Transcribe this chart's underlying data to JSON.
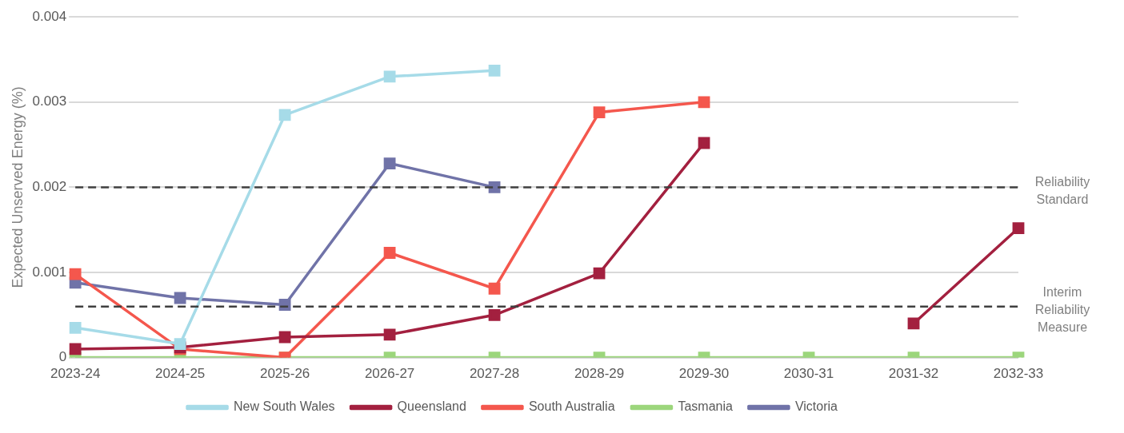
{
  "chart_data": {
    "type": "line",
    "ylabel": "Expected Unserved Energy (%)",
    "categories": [
      "2023-24",
      "2024-25",
      "2025-26",
      "2026-27",
      "2027-28",
      "2028-29",
      "2029-30",
      "2030-31",
      "2031-32",
      "2032-33"
    ],
    "series": [
      {
        "name": "New South Wales",
        "color": "#a6dbe8",
        "values": [
          0.00035,
          0.00016,
          0.00285,
          0.0033,
          0.00337,
          null,
          null,
          null,
          null,
          null
        ]
      },
      {
        "name": "Queensland",
        "color": "#a3203f",
        "values": [
          0.0001,
          0.00012,
          0.00024,
          0.00027,
          0.0005,
          0.00099,
          0.00252,
          null,
          0.0004,
          0.00152
        ]
      },
      {
        "name": "South Australia",
        "color": "#f4574d",
        "values": [
          0.00098,
          0.0001,
          0,
          0.00123,
          0.00081,
          0.00288,
          0.003,
          null,
          null,
          null
        ]
      },
      {
        "name": "Tasmania",
        "color": "#9cd67c",
        "values": [
          0,
          0,
          0,
          0,
          0,
          0,
          0,
          0,
          0,
          0
        ]
      },
      {
        "name": "Victoria",
        "color": "#7073a8",
        "values": [
          0.00088,
          0.0007,
          0.00062,
          0.00228,
          0.002,
          null,
          null,
          null,
          null,
          null
        ]
      }
    ],
    "ylim": [
      0,
      0.004
    ],
    "yticks": [
      0,
      0.001,
      0.002,
      0.003,
      0.004
    ],
    "ref_lines": [
      {
        "axis": "y",
        "value": 0.002,
        "label": "Reliability Standard",
        "color": "#404040",
        "line_style": "dashed"
      },
      {
        "axis": "y",
        "value": 0.0006,
        "label": "Interim Reliability Measure",
        "color": "#404040",
        "line_style": "dashed"
      }
    ],
    "grid": "y",
    "legend": "bottom",
    "marker": "square",
    "line_style": "solid"
  }
}
